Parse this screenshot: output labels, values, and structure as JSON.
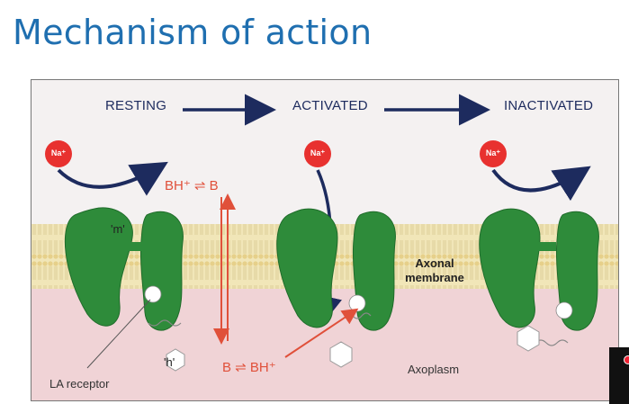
{
  "slide": {
    "title": "Mechanism of action"
  },
  "diagram": {
    "stages": [
      "RESTING",
      "ACTIVATED",
      "INACTIVATED"
    ],
    "ion_label": "Na⁺",
    "equilibrium_top": "BH⁺ ⇌ B",
    "equilibrium_bottom": "B ⇌ BH⁺",
    "gate_m": "'m'",
    "gate_h": "'h'",
    "membrane_label_line1": "Axonal",
    "membrane_label_line2": "membrane",
    "axoplasm_label": "Axoplasm",
    "receptor_label": "LA receptor",
    "colors": {
      "title": "#1f6fb0",
      "channel": "#2e8b3a",
      "ion": "#e8312f",
      "arrow": "#1d2b5e",
      "chemistry": "#e0503a",
      "membrane": "#efe3b0",
      "axoplasm": "#f0d3d6"
    }
  }
}
